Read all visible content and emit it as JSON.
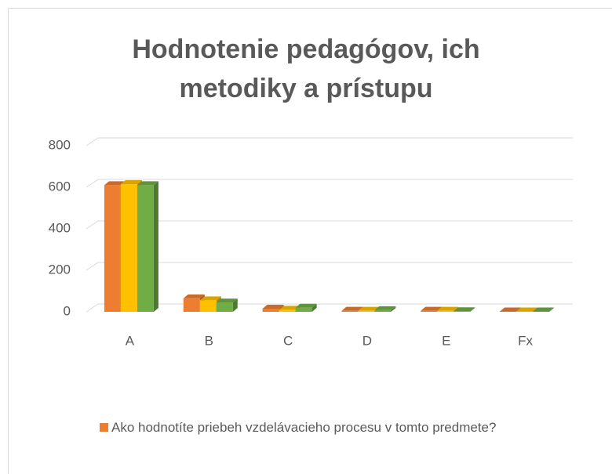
{
  "chart_data": {
    "type": "bar3d",
    "title": "Hodnotenie pedagógov, ich metodiky a prístupu",
    "categories": [
      "A",
      "B",
      "C",
      "D",
      "E",
      "Fx"
    ],
    "series": [
      {
        "name": "Ako hodnotíte priebeh vzdelávacieho procesu v tomto predmete?",
        "color": "#ed7d31",
        "values": [
          610,
          65,
          15,
          5,
          5,
          2
        ]
      },
      {
        "color": "#ffc000",
        "values": [
          615,
          55,
          10,
          5,
          5,
          2
        ]
      },
      {
        "color": "#70ad47",
        "values": [
          610,
          45,
          20,
          8,
          3,
          2
        ]
      }
    ],
    "ylim": [
      0,
      800
    ],
    "yticks": [
      0,
      200,
      400,
      600,
      800
    ],
    "grid": true,
    "legend": "bottom"
  }
}
